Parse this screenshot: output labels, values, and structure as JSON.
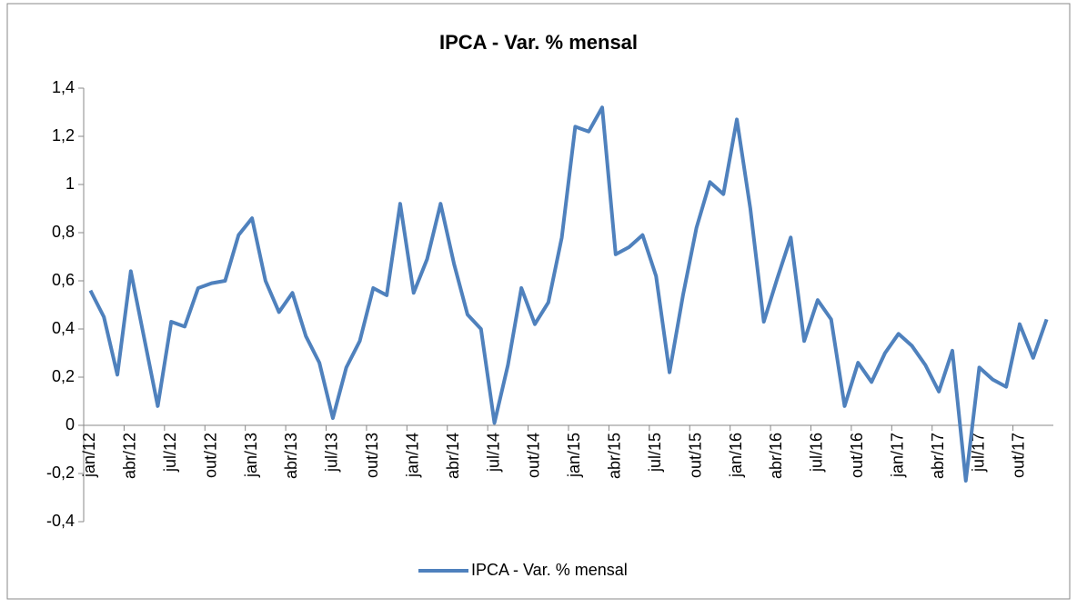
{
  "chart_data": {
    "type": "line",
    "title": "IPCA - Var. % mensal",
    "categories": [
      "jan/12",
      null,
      null,
      "abr/12",
      null,
      null,
      "jul/12",
      null,
      null,
      "out/12",
      null,
      null,
      "jan/13",
      null,
      null,
      "abr/13",
      null,
      null,
      "jul/13",
      null,
      null,
      "out/13",
      null,
      null,
      "jan/14",
      null,
      null,
      "abr/14",
      null,
      null,
      "jul/14",
      null,
      null,
      "out/14",
      null,
      null,
      "jan/15",
      null,
      null,
      "abr/15",
      null,
      null,
      "jul/15",
      null,
      null,
      "out/15",
      null,
      null,
      "jan/16",
      null,
      null,
      "abr/16",
      null,
      null,
      "jul/16",
      null,
      null,
      "out/16",
      null,
      null,
      "jan/17",
      null,
      null,
      "abr/17",
      null,
      null,
      "jul/17",
      null,
      null,
      "out/17",
      null,
      null
    ],
    "series": [
      {
        "name": "IPCA - Var. % mensal",
        "color": "#4f81bd",
        "values": [
          0.56,
          0.45,
          0.21,
          0.64,
          0.36,
          0.08,
          0.43,
          0.41,
          0.57,
          0.59,
          0.6,
          0.79,
          0.86,
          0.6,
          0.47,
          0.55,
          0.37,
          0.26,
          0.03,
          0.24,
          0.35,
          0.57,
          0.54,
          0.92,
          0.55,
          0.69,
          0.92,
          0.67,
          0.46,
          0.4,
          0.01,
          0.25,
          0.57,
          0.42,
          0.51,
          0.78,
          1.24,
          1.22,
          1.32,
          0.71,
          0.74,
          0.79,
          0.62,
          0.22,
          0.54,
          0.82,
          1.01,
          0.96,
          1.27,
          0.9,
          0.43,
          0.61,
          0.78,
          0.35,
          0.52,
          0.44,
          0.08,
          0.26,
          0.18,
          0.3,
          0.38,
          0.33,
          0.25,
          0.14,
          0.31,
          -0.23,
          0.24,
          0.19,
          0.16,
          0.42,
          0.28,
          0.44
        ]
      }
    ],
    "ylim": [
      -0.4,
      1.4
    ],
    "yticks": [
      {
        "value": -0.4,
        "label": "-0,4"
      },
      {
        "value": -0.2,
        "label": "-0,2"
      },
      0,
      {
        "value": 0.2,
        "label": "0,2"
      },
      {
        "value": 0.4,
        "label": "0,4"
      },
      {
        "value": 0.6,
        "label": "0,6"
      },
      {
        "value": 0.8,
        "label": "0,8"
      },
      1,
      {
        "value": 1.2,
        "label": "1,2"
      },
      {
        "value": 1.4,
        "label": "1,4"
      }
    ],
    "legend": "bottom"
  }
}
